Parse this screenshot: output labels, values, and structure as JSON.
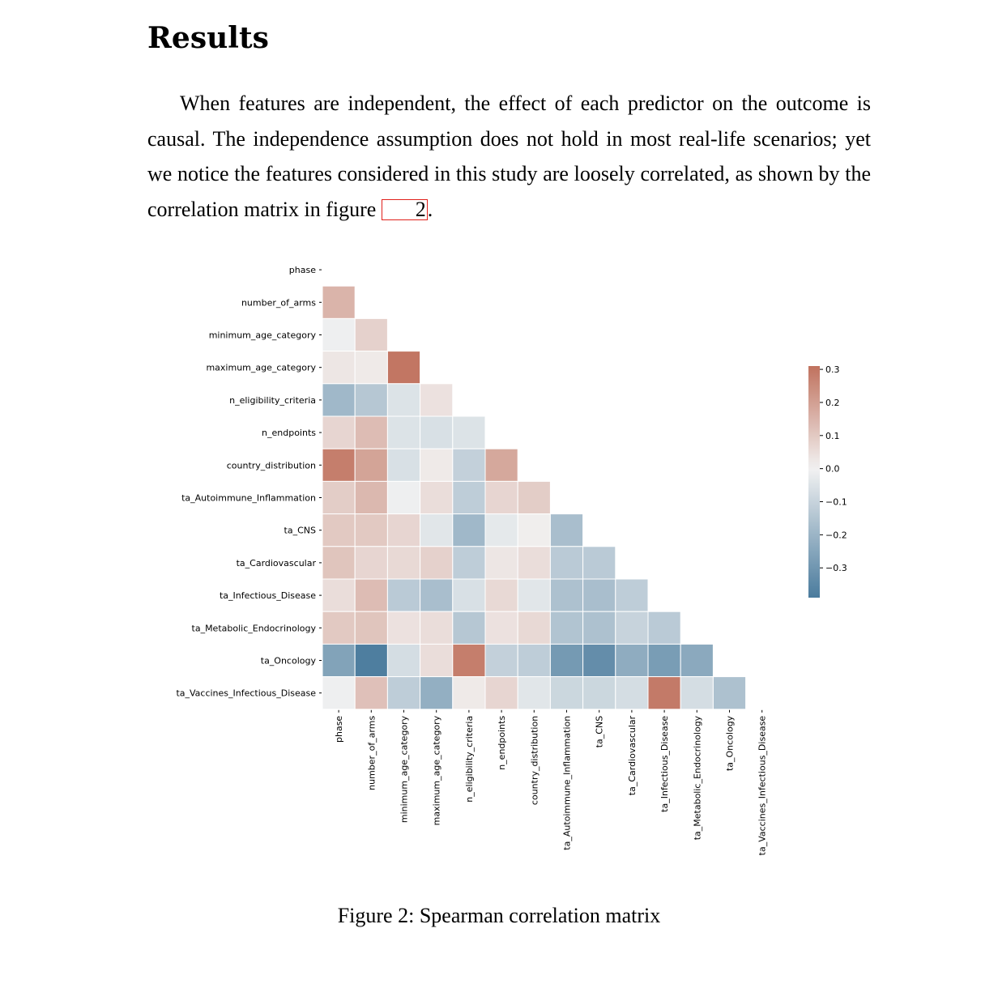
{
  "section": {
    "heading": "Results"
  },
  "paragraph": {
    "text_before": "When features are independent, the effect of each predictor on the outcome is causal. The independence assumption does not hold in most real-life scenarios; yet we notice the features considered in this study are loosely correlated, as shown by the correlation matrix in figure ",
    "figure_ref": "2",
    "text_after": "."
  },
  "caption": "Figure 2: Spearman correlation matrix",
  "chart_data": {
    "type": "heatmap",
    "variables": [
      "phase",
      "number_of_arms",
      "minimum_age_category",
      "maximum_age_category",
      "n_eligibility_criteria",
      "n_endpoints",
      "country_distribution",
      "ta_Autoimmune_Inflammation",
      "ta_CNS",
      "ta_Cardiovascular",
      "ta_Infectious_Disease",
      "ta_Metabolic_Endocrinology",
      "ta_Oncology",
      "ta_Vaccines_Infectious_Disease"
    ],
    "mask": "upper-triangle-including-diagonal",
    "values": [
      [],
      [
        0.15
      ],
      [
        -0.01,
        0.08
      ],
      [
        0.03,
        0.02,
        0.3
      ],
      [
        -0.19,
        -0.14,
        -0.05,
        0.04
      ],
      [
        0.07,
        0.13,
        -0.05,
        -0.06,
        -0.05
      ],
      [
        0.28,
        0.19,
        -0.06,
        0.02,
        -0.11,
        0.18
      ],
      [
        0.09,
        0.14,
        -0.01,
        0.05,
        -0.12,
        0.07,
        0.09
      ],
      [
        0.1,
        0.1,
        0.07,
        -0.04,
        -0.19,
        -0.03,
        0.01,
        -0.17
      ],
      [
        0.11,
        0.07,
        0.06,
        0.08,
        -0.12,
        0.03,
        0.05,
        -0.13,
        -0.13
      ],
      [
        0.05,
        0.13,
        -0.13,
        -0.17,
        -0.06,
        0.06,
        -0.04,
        -0.16,
        -0.17,
        -0.12
      ],
      [
        0.1,
        0.11,
        0.04,
        0.05,
        -0.14,
        0.04,
        0.06,
        -0.15,
        -0.16,
        -0.1,
        -0.13
      ],
      [
        -0.26,
        -0.38,
        -0.07,
        0.05,
        0.28,
        -0.11,
        -0.12,
        -0.29,
        -0.33,
        -0.23,
        -0.28,
        -0.24
      ],
      [
        -0.01,
        0.12,
        -0.12,
        -0.22,
        0.02,
        0.07,
        -0.04,
        -0.09,
        -0.09,
        -0.07,
        0.29,
        -0.07,
        -0.16
      ]
    ],
    "colorbar": {
      "min": -0.39,
      "max": 0.31,
      "ticks": [
        0.3,
        0.2,
        0.1,
        0.0,
        -0.1,
        -0.2,
        -0.3
      ],
      "tick_labels": [
        "0.3",
        "0.2",
        "0.1",
        "0.0",
        "−0.1",
        "−0.2",
        "−0.3"
      ],
      "colors": {
        "negative": "#4a7b9d",
        "neutral": "#f2f2f2",
        "positive": "#c0725e"
      }
    }
  }
}
